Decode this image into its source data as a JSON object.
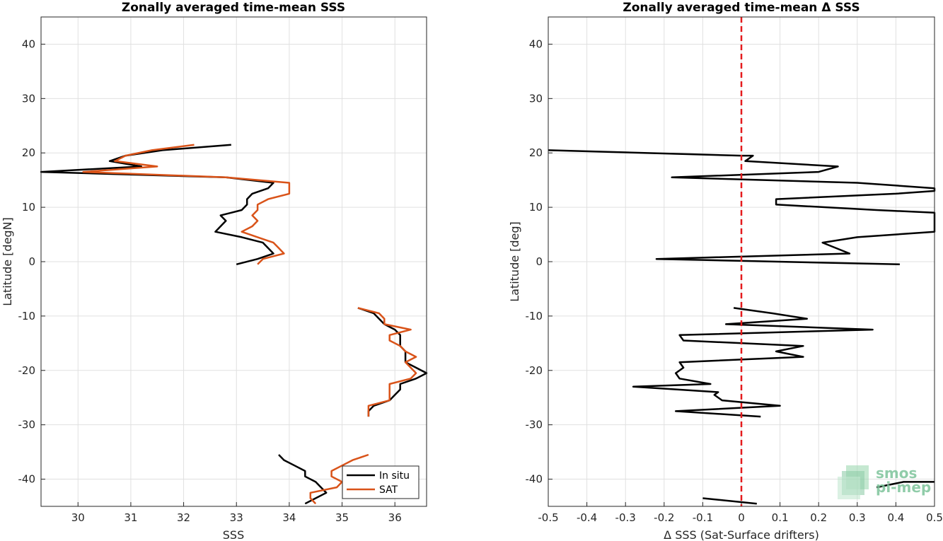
{
  "chart_data": [
    {
      "type": "line",
      "title": "Zonally averaged time-mean SSS",
      "xlabel": "SSS",
      "ylabel": "Latitude [degN]",
      "xlim": [
        29.3,
        36.6
      ],
      "ylim": [
        -45,
        45
      ],
      "xticks": [
        30,
        31,
        32,
        33,
        34,
        35,
        36
      ],
      "yticks": [
        -40,
        -30,
        -20,
        -10,
        0,
        10,
        20,
        30,
        40
      ],
      "xtick_labels": [
        "30",
        "31",
        "32",
        "33",
        "34",
        "35",
        "36"
      ],
      "ytick_labels": [
        "-40",
        "-30",
        "-20",
        "-10",
        "0",
        "10",
        "20",
        "30",
        "40"
      ],
      "grid": true,
      "legend": "bottom-right",
      "series": [
        {
          "name": "In situ",
          "color": "#000000",
          "segments": [
            [
              [
                32.9,
                21.5
              ],
              [
                31.6,
                20.5
              ],
              [
                30.9,
                19.5
              ],
              [
                30.6,
                18.5
              ],
              [
                31.2,
                17.5
              ],
              [
                29.3,
                16.5
              ],
              [
                32.8,
                15.5
              ],
              [
                33.7,
                14.5
              ],
              [
                33.6,
                13.5
              ],
              [
                33.3,
                12.5
              ],
              [
                33.2,
                11.5
              ],
              [
                33.2,
                10.5
              ],
              [
                33.1,
                9.5
              ],
              [
                32.9,
                9.0
              ],
              [
                32.7,
                8.5
              ],
              [
                32.8,
                7.5
              ],
              [
                32.7,
                6.5
              ],
              [
                32.6,
                5.5
              ],
              [
                33.1,
                4.5
              ],
              [
                33.5,
                3.5
              ],
              [
                33.6,
                2.5
              ],
              [
                33.7,
                1.5
              ],
              [
                33.4,
                0.5
              ],
              [
                33.0,
                -0.5
              ]
            ],
            [
              [
                35.3,
                -8.5
              ],
              [
                35.6,
                -9.5
              ],
              [
                35.7,
                -10.5
              ],
              [
                35.8,
                -11.5
              ],
              [
                36.0,
                -12.5
              ],
              [
                36.1,
                -13.5
              ],
              [
                36.1,
                -14.5
              ],
              [
                36.1,
                -15.5
              ],
              [
                36.2,
                -16.5
              ],
              [
                36.2,
                -17.5
              ],
              [
                36.2,
                -18.5
              ],
              [
                36.4,
                -19.5
              ],
              [
                36.6,
                -20.5
              ],
              [
                36.4,
                -21.5
              ],
              [
                36.1,
                -22.5
              ],
              [
                36.1,
                -23.5
              ],
              [
                36.0,
                -24.5
              ],
              [
                35.9,
                -25.5
              ],
              [
                35.6,
                -26.5
              ],
              [
                35.5,
                -27.5
              ],
              [
                35.5,
                -28.5
              ]
            ],
            [
              [
                33.8,
                -35.5
              ],
              [
                33.9,
                -36.5
              ],
              [
                34.1,
                -37.5
              ],
              [
                34.3,
                -38.5
              ],
              [
                34.3,
                -39.5
              ],
              [
                34.5,
                -40.5
              ],
              [
                34.6,
                -41.5
              ],
              [
                34.7,
                -42.5
              ],
              [
                34.5,
                -43.5
              ],
              [
                34.3,
                -44.5
              ]
            ]
          ]
        },
        {
          "name": "SAT",
          "color": "#d95319",
          "segments": [
            [
              [
                32.2,
                21.5
              ],
              [
                31.4,
                20.5
              ],
              [
                30.9,
                19.5
              ],
              [
                30.7,
                18.5
              ],
              [
                31.5,
                17.5
              ],
              [
                30.1,
                16.5
              ],
              [
                32.8,
                15.5
              ],
              [
                34.0,
                14.5
              ],
              [
                34.0,
                13.5
              ],
              [
                34.0,
                12.5
              ],
              [
                33.6,
                11.5
              ],
              [
                33.4,
                10.5
              ],
              [
                33.4,
                9.5
              ],
              [
                33.3,
                8.5
              ],
              [
                33.4,
                7.5
              ],
              [
                33.3,
                6.5
              ],
              [
                33.1,
                5.5
              ],
              [
                33.4,
                4.5
              ],
              [
                33.7,
                3.5
              ],
              [
                33.8,
                2.5
              ],
              [
                33.9,
                1.5
              ],
              [
                33.5,
                0.5
              ],
              [
                33.4,
                -0.5
              ]
            ],
            [
              [
                35.3,
                -8.5
              ],
              [
                35.7,
                -9.5
              ],
              [
                35.8,
                -10.5
              ],
              [
                35.8,
                -11.5
              ],
              [
                36.3,
                -12.5
              ],
              [
                35.9,
                -13.5
              ],
              [
                35.9,
                -14.5
              ],
              [
                36.1,
                -15.5
              ],
              [
                36.2,
                -16.5
              ],
              [
                36.4,
                -17.5
              ],
              [
                36.2,
                -18.5
              ],
              [
                36.3,
                -19.5
              ],
              [
                36.4,
                -20.5
              ],
              [
                36.3,
                -21.5
              ],
              [
                35.9,
                -22.5
              ],
              [
                35.9,
                -23.5
              ],
              [
                35.9,
                -24.5
              ],
              [
                35.9,
                -25.5
              ],
              [
                35.5,
                -26.5
              ],
              [
                35.5,
                -27.5
              ],
              [
                35.5,
                -28.5
              ]
            ],
            [
              [
                35.5,
                -35.5
              ],
              [
                35.2,
                -36.5
              ],
              [
                35.0,
                -37.5
              ],
              [
                34.8,
                -38.5
              ],
              [
                34.8,
                -39.5
              ],
              [
                35.0,
                -40.5
              ],
              [
                34.9,
                -41.5
              ],
              [
                34.4,
                -42.5
              ],
              [
                34.4,
                -43.5
              ],
              [
                34.5,
                -44.5
              ]
            ]
          ]
        }
      ]
    },
    {
      "type": "line",
      "title": "Zonally averaged time-mean Δ SSS",
      "xlabel": "Δ SSS (Sat-Surface drifters)",
      "ylabel": "Latitude [deg]",
      "xlim": [
        -0.5,
        0.5
      ],
      "ylim": [
        -45,
        45
      ],
      "xticks": [
        -0.5,
        -0.4,
        -0.3,
        -0.2,
        -0.1,
        0,
        0.1,
        0.2,
        0.3,
        0.4,
        0.5
      ],
      "yticks": [
        -40,
        -30,
        -20,
        -10,
        0,
        10,
        20,
        30,
        40
      ],
      "xtick_labels": [
        "-0.5",
        "-0.4",
        "-0.3",
        "-0.2",
        "-0.1",
        "0",
        "0.1",
        "0.2",
        "0.3",
        "0.4",
        "0.5"
      ],
      "ytick_labels": [
        "-40",
        "-30",
        "-20",
        "-10",
        "0",
        "10",
        "20",
        "30",
        "40"
      ],
      "grid": true,
      "reference_line": {
        "x": 0,
        "color": "#e41a1c",
        "style": "dashed"
      },
      "series": [
        {
          "color": "#000000",
          "segments": [
            [
              [
                -0.5,
                20.5
              ],
              [
                0.0,
                19.5
              ],
              [
                0.03,
                19.5
              ],
              [
                0.01,
                18.5
              ],
              [
                0.25,
                17.5
              ],
              [
                0.2,
                16.5
              ],
              [
                -0.18,
                15.5
              ],
              [
                0.3,
                14.5
              ],
              [
                0.5,
                13.5
              ],
              [
                0.5,
                13.0
              ],
              [
                0.4,
                12.5
              ],
              [
                0.09,
                11.5
              ],
              [
                0.09,
                10.5
              ],
              [
                0.35,
                9.5
              ],
              [
                0.5,
                9.0
              ],
              [
                0.5,
                5.5
              ],
              [
                0.3,
                4.5
              ],
              [
                0.21,
                3.5
              ],
              [
                0.28,
                1.5
              ],
              [
                -0.22,
                0.5
              ],
              [
                0.41,
                -0.5
              ]
            ],
            [
              [
                -0.02,
                -8.5
              ],
              [
                0.08,
                -9.5
              ],
              [
                0.17,
                -10.5
              ],
              [
                -0.04,
                -11.5
              ],
              [
                0.34,
                -12.5
              ],
              [
                -0.16,
                -13.5
              ],
              [
                -0.15,
                -14.5
              ],
              [
                0.16,
                -15.5
              ],
              [
                0.09,
                -16.5
              ],
              [
                0.16,
                -17.5
              ],
              [
                -0.16,
                -18.5
              ],
              [
                -0.15,
                -19.5
              ],
              [
                -0.17,
                -20.5
              ],
              [
                -0.16,
                -21.5
              ],
              [
                -0.08,
                -22.5
              ],
              [
                -0.28,
                -23.0
              ],
              [
                -0.06,
                -24.0
              ],
              [
                -0.07,
                -24.5
              ],
              [
                -0.05,
                -25.5
              ],
              [
                0.1,
                -26.5
              ],
              [
                -0.17,
                -27.5
              ],
              [
                0.05,
                -28.5
              ]
            ],
            [
              [
                0.5,
                -40.5
              ],
              [
                0.42,
                -40.5
              ],
              [
                0.35,
                -41.5
              ]
            ],
            [
              [
                -0.1,
                -43.5
              ],
              [
                0.04,
                -44.5
              ]
            ]
          ]
        }
      ]
    }
  ],
  "legend": {
    "items": [
      {
        "label": "In situ",
        "color": "#000000"
      },
      {
        "label": "SAT",
        "color": "#d95319"
      }
    ]
  },
  "watermark": {
    "line1": "smos",
    "line2": "pi-mep",
    "color": "#7dc49b"
  }
}
